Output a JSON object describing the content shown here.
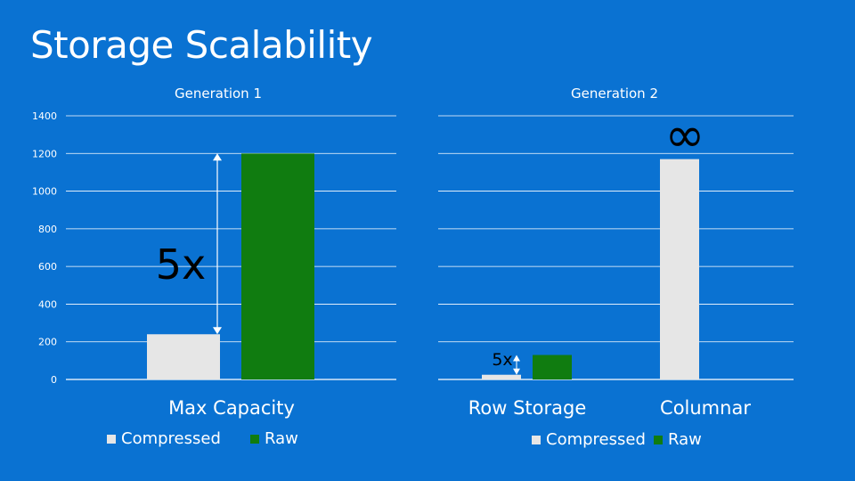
{
  "slide": {
    "title": "Storage Scalability"
  },
  "colors": {
    "compressed": "#e6e6e6",
    "raw": "#107c10",
    "grid": "#ffffff",
    "background": "#0a72d2"
  },
  "chart_data": [
    {
      "type": "bar",
      "title": "Generation 1",
      "categories": [
        "Max Capacity"
      ],
      "series": [
        {
          "name": "Compressed",
          "values": [
            240
          ]
        },
        {
          "name": "Raw",
          "values": [
            1200
          ]
        }
      ],
      "ylim": [
        0,
        1400
      ],
      "yticks": [
        "0",
        "200",
        "400",
        "600",
        "800",
        "1000",
        "1200",
        "1400"
      ],
      "annotation": "5x",
      "legend": "bottom"
    },
    {
      "type": "bar",
      "title": "Generation 2",
      "categories": [
        "Row Storage",
        "Columnar"
      ],
      "series": [
        {
          "name": "Compressed",
          "values": [
            25,
            1170
          ]
        },
        {
          "name": "Raw",
          "values": [
            130,
            null
          ]
        }
      ],
      "ylim": [
        0,
        1400
      ],
      "annotations": [
        "5x",
        "∞"
      ],
      "legend": "bottom"
    }
  ]
}
